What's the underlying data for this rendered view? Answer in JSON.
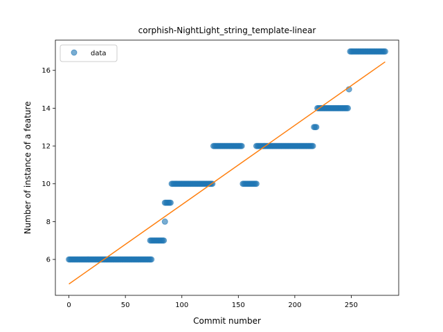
{
  "chart_data": {
    "type": "scatter",
    "title": "corphish-NightLight_string_template-linear",
    "xlabel": "Commit number",
    "ylabel": "Number of instance of a feature",
    "xlim": [
      -12,
      292
    ],
    "ylim": [
      4.1,
      17.6
    ],
    "xticks": [
      0,
      50,
      100,
      150,
      200,
      250
    ],
    "yticks": [
      6,
      8,
      10,
      12,
      14,
      16
    ],
    "grid": false,
    "legend_position": "top-left",
    "series": [
      {
        "name": "data",
        "kind": "points",
        "color": "#1f77b4",
        "segments": [
          {
            "x_start": 0,
            "x_end": 73,
            "y": 6
          },
          {
            "x_start": 72,
            "x_end": 84,
            "y": 7
          },
          {
            "x_start": 85,
            "x_end": 85,
            "y": 8
          },
          {
            "x_start": 85,
            "x_end": 90,
            "y": 9
          },
          {
            "x_start": 91,
            "x_end": 127,
            "y": 10
          },
          {
            "x_start": 128,
            "x_end": 153,
            "y": 12
          },
          {
            "x_start": 154,
            "x_end": 166,
            "y": 10
          },
          {
            "x_start": 166,
            "x_end": 216,
            "y": 12
          },
          {
            "x_start": 217,
            "x_end": 219,
            "y": 13
          },
          {
            "x_start": 220,
            "x_end": 247,
            "y": 14
          },
          {
            "x_start": 248,
            "x_end": 248,
            "y": 15
          },
          {
            "x_start": 249,
            "x_end": 280,
            "y": 17
          }
        ]
      },
      {
        "name": "",
        "kind": "line",
        "color": "#ff7f0e",
        "x": [
          0,
          280
        ],
        "y": [
          4.7,
          16.45
        ]
      }
    ]
  }
}
